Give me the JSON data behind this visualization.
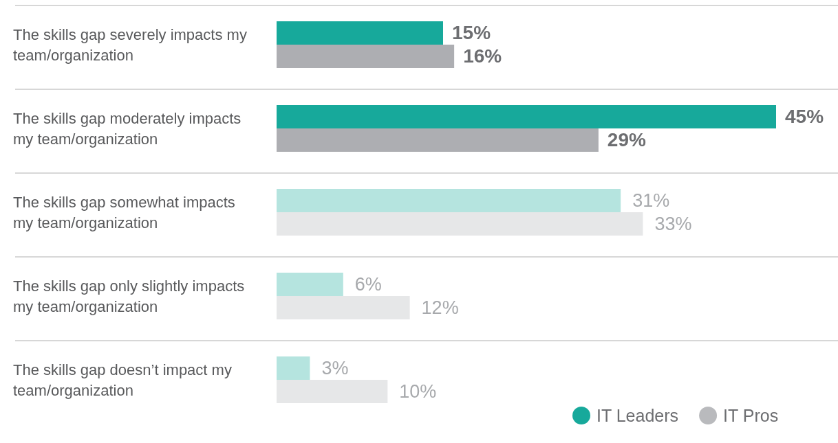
{
  "chart_data": {
    "type": "bar",
    "orientation": "horizontal",
    "categories": [
      "The skills gap severely impacts my team/organization",
      "The skills gap moderately impacts my team/organization",
      "The skills gap somewhat impacts my team/organization",
      "The skills gap only slightly impacts my team/organization",
      "The skills gap doesn’t impact my team/organization"
    ],
    "series": [
      {
        "name": "IT Leaders",
        "color": "#17a99b",
        "colors": [
          "#17a99b",
          "#17a99b",
          "#b5e4df",
          "#b5e4df",
          "#b5e4df"
        ],
        "values": [
          15,
          45,
          31,
          6,
          3
        ],
        "value_labels": [
          "15%",
          "45%",
          "31%",
          "6%",
          "3%"
        ]
      },
      {
        "name": "IT Pros",
        "color": "#b9babd",
        "colors": [
          "#adaeb2",
          "#adaeb2",
          "#e6e7e8",
          "#e6e7e8",
          "#e6e7e8"
        ],
        "values": [
          16,
          29,
          33,
          12,
          10
        ],
        "value_labels": [
          "16%",
          "29%",
          "33%",
          "12%",
          "10%"
        ]
      }
    ],
    "legend": "bottom right"
  }
}
